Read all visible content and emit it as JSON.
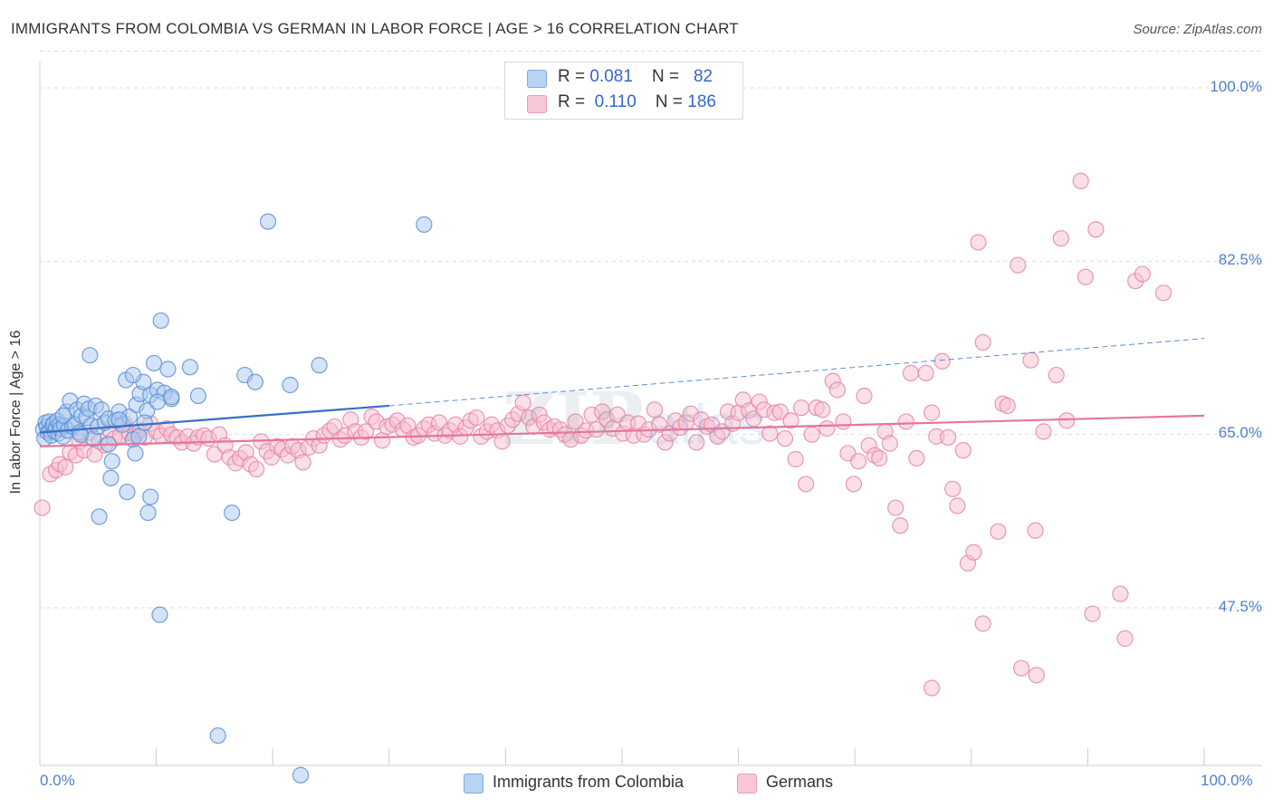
{
  "title": "IMMIGRANTS FROM COLOMBIA VS GERMAN IN LABOR FORCE | AGE > 16 CORRELATION CHART",
  "source": "Source: ZipAtlas.com",
  "colors": {
    "blue_fill": "#a9c8f0",
    "blue_stroke": "#5b8fd6",
    "blue_line": "#3570c8",
    "pink_fill": "#f6bfd0",
    "pink_stroke": "#e886a6",
    "pink_line": "#e8749c",
    "tick_label": "#4d7fcc",
    "grid": "#dddddd"
  },
  "legend_top": {
    "rows": [
      {
        "r_label": "R = ",
        "r_value": "0.081",
        "n_label": "N = ",
        "n_value": "82"
      },
      {
        "r_label": "R = ",
        "r_value": "0.110",
        "n_label": "N = ",
        "n_value": "186"
      }
    ]
  },
  "legend_bottom": {
    "items": [
      {
        "label": "Immigrants from Colombia"
      },
      {
        "label": "Germans"
      }
    ]
  },
  "chart_data": {
    "type": "scatter",
    "title": "IMMIGRANTS FROM COLOMBIA VS GERMAN IN LABOR FORCE | AGE > 16 CORRELATION CHART",
    "xlabel": "",
    "ylabel": "In Labor Force | Age > 16",
    "xlim": [
      0,
      100
    ],
    "ylim": [
      30,
      102
    ],
    "x_tick_labels": [
      "0.0%",
      "100.0%"
    ],
    "y_ticks": [
      100.0,
      82.5,
      65.0,
      47.5
    ],
    "y_tick_labels": [
      "100.0%",
      "82.5%",
      "65.0%",
      "47.5%"
    ],
    "grid": true,
    "legend_position": "top-center",
    "series": [
      {
        "name": "Immigrants from Colombia",
        "R": 0.081,
        "N": 82,
        "trend": {
          "x0": 0,
          "y0": 65.2,
          "x1": 30,
          "y1": 67.9
        },
        "trend_extension": {
          "x0": 30,
          "y0": 67.9,
          "x1": 100,
          "y1": 74.7
        },
        "points": [
          [
            0.3,
            65.5
          ],
          [
            0.4,
            64.6
          ],
          [
            0.5,
            66.2
          ],
          [
            0.6,
            65.8
          ],
          [
            0.7,
            65.2
          ],
          [
            0.8,
            66.3
          ],
          [
            0.9,
            65.4
          ],
          [
            1.0,
            64.9
          ],
          [
            1.1,
            65.9
          ],
          [
            1.2,
            66.1
          ],
          [
            1.3,
            65.3
          ],
          [
            1.4,
            65.7
          ],
          [
            1.5,
            66.4
          ],
          [
            1.6,
            65.1
          ],
          [
            1.7,
            66.0
          ],
          [
            1.8,
            65.6
          ],
          [
            2.0,
            64.8
          ],
          [
            2.1,
            65.9
          ],
          [
            2.3,
            67.3
          ],
          [
            2.4,
            65.4
          ],
          [
            2.6,
            68.4
          ],
          [
            2.8,
            65.8
          ],
          [
            3.0,
            66.0
          ],
          [
            3.2,
            67.5
          ],
          [
            3.4,
            65.2
          ],
          [
            3.6,
            66.9
          ],
          [
            3.8,
            68.1
          ],
          [
            4.0,
            66.7
          ],
          [
            4.2,
            67.6
          ],
          [
            4.4,
            65.9
          ],
          [
            4.6,
            64.6
          ],
          [
            4.8,
            67.9
          ],
          [
            5.0,
            65.8
          ],
          [
            5.3,
            67.5
          ],
          [
            5.6,
            66.2
          ],
          [
            5.9,
            66.6
          ],
          [
            6.2,
            62.3
          ],
          [
            6.5,
            66.4
          ],
          [
            6.8,
            67.3
          ],
          [
            7.1,
            66.0
          ],
          [
            7.4,
            70.5
          ],
          [
            7.7,
            66.8
          ],
          [
            8.0,
            64.5
          ],
          [
            8.3,
            68.0
          ],
          [
            8.6,
            69.1
          ],
          [
            8.9,
            70.3
          ],
          [
            9.2,
            67.4
          ],
          [
            9.5,
            69.0
          ],
          [
            9.8,
            72.2
          ],
          [
            10.1,
            69.5
          ],
          [
            10.4,
            76.5
          ],
          [
            10.7,
            69.2
          ],
          [
            11.0,
            71.6
          ],
          [
            11.3,
            68.6
          ],
          [
            12.9,
            71.8
          ],
          [
            13.6,
            68.9
          ],
          [
            4.3,
            73.0
          ],
          [
            5.9,
            64.0
          ],
          [
            6.1,
            60.6
          ],
          [
            7.5,
            59.2
          ],
          [
            8.2,
            63.1
          ],
          [
            9.5,
            58.7
          ],
          [
            9.3,
            57.1
          ],
          [
            10.1,
            68.3
          ],
          [
            11.3,
            68.8
          ],
          [
            9.0,
            66.2
          ],
          [
            8.5,
            64.8
          ],
          [
            5.1,
            56.7
          ],
          [
            16.5,
            57.1
          ],
          [
            17.6,
            71.0
          ],
          [
            18.5,
            70.3
          ],
          [
            21.5,
            70.0
          ],
          [
            24.0,
            72.0
          ],
          [
            10.3,
            46.8
          ],
          [
            15.3,
            34.6
          ],
          [
            22.4,
            30.6
          ],
          [
            19.6,
            86.5
          ],
          [
            33.0,
            86.2
          ],
          [
            8.0,
            71.0
          ],
          [
            6.8,
            66.5
          ],
          [
            3.5,
            65.0
          ],
          [
            2.0,
            66.9
          ]
        ]
      },
      {
        "name": "Germans",
        "R": 0.11,
        "N": 186,
        "trend": {
          "x0": 0,
          "y0": 63.8,
          "x1": 100,
          "y1": 66.9
        },
        "points": [
          [
            0.2,
            57.6
          ],
          [
            0.9,
            61.0
          ],
          [
            1.4,
            61.4
          ],
          [
            1.7,
            62.0
          ],
          [
            2.2,
            61.7
          ],
          [
            2.6,
            63.2
          ],
          [
            3.1,
            62.9
          ],
          [
            3.4,
            64.3
          ],
          [
            3.8,
            63.4
          ],
          [
            4.3,
            65.2
          ],
          [
            4.7,
            63.0
          ],
          [
            5.1,
            64.3
          ],
          [
            5.6,
            63.9
          ],
          [
            6.0,
            65.5
          ],
          [
            6.4,
            64.6
          ],
          [
            6.9,
            64.9
          ],
          [
            7.3,
            66.1
          ],
          [
            7.7,
            65.1
          ],
          [
            8.2,
            64.9
          ],
          [
            8.6,
            65.4
          ],
          [
            9.0,
            64.7
          ],
          [
            9.5,
            66.1
          ],
          [
            10.0,
            65.3
          ],
          [
            10.4,
            64.9
          ],
          [
            10.9,
            65.6
          ],
          [
            11.3,
            65.0
          ],
          [
            11.8,
            64.7
          ],
          [
            12.2,
            64.2
          ],
          [
            12.7,
            64.8
          ],
          [
            13.2,
            64.1
          ],
          [
            13.6,
            64.7
          ],
          [
            14.1,
            64.9
          ],
          [
            14.5,
            64.6
          ],
          [
            15.0,
            63.0
          ],
          [
            15.4,
            65.0
          ],
          [
            15.9,
            63.9
          ],
          [
            16.3,
            62.7
          ],
          [
            16.8,
            62.1
          ],
          [
            17.2,
            62.6
          ],
          [
            17.7,
            63.2
          ],
          [
            18.1,
            62.0
          ],
          [
            18.6,
            61.5
          ],
          [
            19.0,
            64.3
          ],
          [
            19.5,
            63.3
          ],
          [
            19.9,
            62.7
          ],
          [
            20.4,
            63.8
          ],
          [
            20.8,
            63.5
          ],
          [
            21.3,
            62.9
          ],
          [
            21.7,
            63.8
          ],
          [
            22.2,
            63.4
          ],
          [
            22.6,
            62.2
          ],
          [
            23.1,
            63.7
          ],
          [
            23.5,
            64.6
          ],
          [
            24.0,
            63.9
          ],
          [
            24.4,
            64.9
          ],
          [
            24.9,
            65.4
          ],
          [
            25.3,
            65.8
          ],
          [
            25.8,
            64.5
          ],
          [
            26.2,
            64.9
          ],
          [
            26.7,
            66.5
          ],
          [
            27.1,
            65.3
          ],
          [
            27.6,
            64.7
          ],
          [
            28.0,
            65.3
          ],
          [
            28.5,
            66.8
          ],
          [
            28.9,
            66.3
          ],
          [
            29.4,
            64.4
          ],
          [
            29.8,
            65.8
          ],
          [
            30.3,
            66.0
          ],
          [
            30.7,
            66.4
          ],
          [
            31.2,
            65.5
          ],
          [
            31.6,
            65.9
          ],
          [
            32.1,
            64.7
          ],
          [
            32.5,
            64.9
          ],
          [
            33.0,
            65.6
          ],
          [
            33.4,
            66.0
          ],
          [
            33.9,
            65.1
          ],
          [
            34.3,
            66.2
          ],
          [
            34.8,
            64.9
          ],
          [
            35.2,
            65.4
          ],
          [
            35.7,
            66.0
          ],
          [
            36.1,
            64.8
          ],
          [
            36.6,
            65.7
          ],
          [
            37.0,
            66.4
          ],
          [
            37.5,
            66.7
          ],
          [
            37.9,
            64.8
          ],
          [
            38.4,
            65.3
          ],
          [
            38.8,
            66.0
          ],
          [
            39.3,
            65.4
          ],
          [
            39.7,
            64.3
          ],
          [
            40.2,
            65.9
          ],
          [
            40.6,
            66.5
          ],
          [
            41.1,
            67.1
          ],
          [
            41.5,
            68.2
          ],
          [
            42.0,
            66.7
          ],
          [
            42.4,
            65.8
          ],
          [
            42.9,
            67.0
          ],
          [
            43.3,
            66.2
          ],
          [
            43.8,
            65.5
          ],
          [
            44.2,
            65.8
          ],
          [
            44.7,
            65.5
          ],
          [
            45.1,
            65.0
          ],
          [
            45.6,
            64.5
          ],
          [
            46.0,
            66.3
          ],
          [
            46.5,
            64.9
          ],
          [
            46.9,
            65.4
          ],
          [
            47.4,
            67.0
          ],
          [
            47.8,
            65.5
          ],
          [
            48.3,
            67.3
          ],
          [
            48.7,
            66.5
          ],
          [
            49.2,
            65.6
          ],
          [
            49.6,
            67.0
          ],
          [
            50.1,
            65.1
          ],
          [
            50.5,
            66.2
          ],
          [
            51.0,
            64.9
          ],
          [
            51.4,
            66.1
          ],
          [
            51.9,
            65.0
          ],
          [
            52.3,
            65.5
          ],
          [
            52.8,
            67.5
          ],
          [
            53.2,
            66.0
          ],
          [
            53.7,
            64.2
          ],
          [
            54.1,
            65.1
          ],
          [
            54.6,
            66.4
          ],
          [
            55.0,
            65.7
          ],
          [
            55.5,
            66.2
          ],
          [
            55.9,
            67.1
          ],
          [
            56.4,
            64.2
          ],
          [
            56.8,
            66.5
          ],
          [
            57.3,
            65.8
          ],
          [
            57.7,
            66.0
          ],
          [
            58.2,
            64.8
          ],
          [
            58.6,
            65.3
          ],
          [
            59.1,
            67.3
          ],
          [
            59.5,
            66.1
          ],
          [
            60.0,
            67.2
          ],
          [
            60.4,
            68.5
          ],
          [
            60.9,
            67.4
          ],
          [
            61.3,
            66.6
          ],
          [
            61.8,
            68.3
          ],
          [
            62.2,
            67.5
          ],
          [
            62.7,
            65.1
          ],
          [
            63.1,
            67.2
          ],
          [
            63.6,
            67.3
          ],
          [
            64.0,
            64.6
          ],
          [
            64.5,
            66.4
          ],
          [
            64.9,
            62.5
          ],
          [
            65.4,
            67.7
          ],
          [
            65.8,
            60.0
          ],
          [
            66.3,
            65.0
          ],
          [
            66.7,
            67.7
          ],
          [
            67.2,
            67.5
          ],
          [
            67.6,
            65.6
          ],
          [
            68.1,
            70.4
          ],
          [
            68.5,
            69.5
          ],
          [
            69.0,
            66.3
          ],
          [
            69.4,
            63.1
          ],
          [
            69.9,
            60.0
          ],
          [
            70.3,
            62.3
          ],
          [
            70.8,
            68.9
          ],
          [
            71.2,
            63.9
          ],
          [
            71.7,
            62.9
          ],
          [
            72.1,
            62.6
          ],
          [
            72.6,
            65.3
          ],
          [
            73.0,
            64.1
          ],
          [
            73.5,
            57.6
          ],
          [
            73.9,
            55.8
          ],
          [
            74.4,
            66.3
          ],
          [
            74.8,
            71.2
          ],
          [
            75.3,
            62.6
          ],
          [
            76.1,
            71.2
          ],
          [
            76.6,
            67.2
          ],
          [
            77.0,
            64.8
          ],
          [
            77.5,
            72.4
          ],
          [
            78.0,
            64.7
          ],
          [
            78.4,
            59.5
          ],
          [
            78.8,
            57.8
          ],
          [
            79.3,
            63.4
          ],
          [
            79.7,
            52.0
          ],
          [
            80.2,
            53.1
          ],
          [
            80.6,
            84.4
          ],
          [
            81.0,
            74.3
          ],
          [
            82.3,
            55.2
          ],
          [
            82.7,
            68.1
          ],
          [
            83.1,
            67.9
          ],
          [
            84.0,
            82.1
          ],
          [
            85.1,
            72.5
          ],
          [
            85.5,
            55.3
          ],
          [
            86.2,
            65.3
          ],
          [
            87.3,
            71.0
          ],
          [
            87.7,
            84.8
          ],
          [
            88.2,
            66.4
          ],
          [
            89.4,
            90.6
          ],
          [
            89.8,
            80.9
          ],
          [
            90.4,
            46.9
          ],
          [
            90.7,
            85.7
          ],
          [
            92.8,
            48.9
          ],
          [
            93.2,
            44.4
          ],
          [
            94.1,
            80.5
          ],
          [
            94.7,
            81.2
          ],
          [
            96.5,
            79.3
          ],
          [
            81.0,
            45.9
          ],
          [
            84.3,
            41.4
          ],
          [
            85.6,
            40.7
          ],
          [
            76.6,
            39.4
          ]
        ]
      }
    ]
  }
}
